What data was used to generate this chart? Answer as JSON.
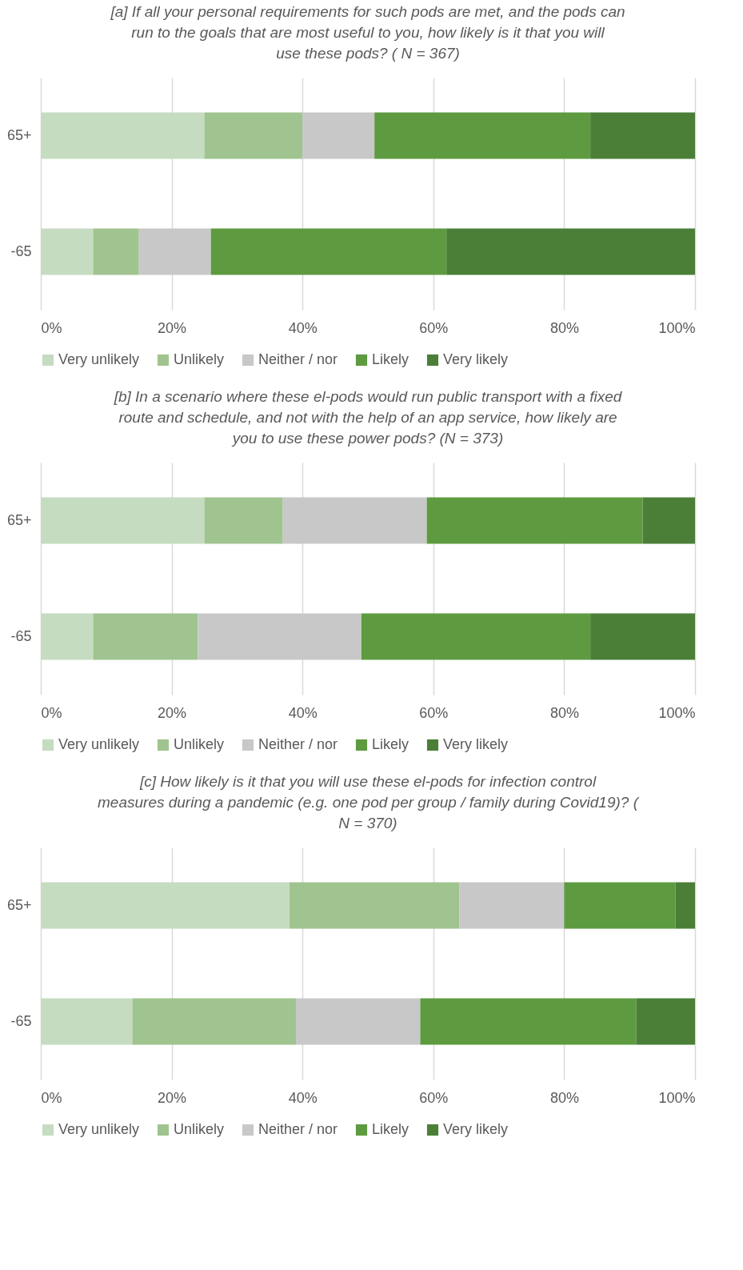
{
  "chart_data": [
    {
      "type": "bar",
      "orientation": "horizontal",
      "stacked": true,
      "title": "[a] If all your personal requirements for such pods are met, and the pods can run to the goals that are most useful to you, how likely is it that you will use these pods? ( N = 367)",
      "categories": [
        "65+",
        "-65"
      ],
      "series": [
        {
          "name": "Very unlikely",
          "color": "#c5dcc0",
          "values": [
            25,
            8
          ]
        },
        {
          "name": "Unlikely",
          "color": "#a0c48f",
          "values": [
            15,
            7
          ]
        },
        {
          "name": "Neither / nor",
          "color": "#c8c8c8",
          "values": [
            11,
            11
          ]
        },
        {
          "name": "Likely",
          "color": "#5e9b40",
          "values": [
            33,
            36
          ]
        },
        {
          "name": "Very likely",
          "color": "#4b7f38",
          "values": [
            16,
            38
          ]
        }
      ],
      "xlim": [
        0,
        100
      ],
      "xticks": [
        {
          "value": 0,
          "label": "0%"
        },
        {
          "value": 20,
          "label": "20%"
        },
        {
          "value": 40,
          "label": "40%"
        },
        {
          "value": 60,
          "label": "60%"
        },
        {
          "value": 80,
          "label": "80%"
        },
        {
          "value": 100,
          "label": "100%"
        }
      ],
      "grid": "x",
      "legend": "bottom"
    },
    {
      "type": "bar",
      "orientation": "horizontal",
      "stacked": true,
      "title": "[b] In a scenario where these el-pods would run public transport with a fixed route and schedule, and not with the help of an app service, how likely are you to use these power pods? (N = 373)",
      "categories": [
        "65+",
        "-65"
      ],
      "series": [
        {
          "name": "Very unlikely",
          "color": "#c5dcc0",
          "values": [
            25,
            8
          ]
        },
        {
          "name": "Unlikely",
          "color": "#a0c48f",
          "values": [
            12,
            16
          ]
        },
        {
          "name": "Neither / nor",
          "color": "#c8c8c8",
          "values": [
            22,
            25
          ]
        },
        {
          "name": "Likely",
          "color": "#5e9b40",
          "values": [
            33,
            35
          ]
        },
        {
          "name": "Very likely",
          "color": "#4b7f38",
          "values": [
            8,
            16
          ]
        }
      ],
      "xlim": [
        0,
        100
      ],
      "xticks": [
        {
          "value": 0,
          "label": "0%"
        },
        {
          "value": 20,
          "label": "20%"
        },
        {
          "value": 40,
          "label": "40%"
        },
        {
          "value": 60,
          "label": "60%"
        },
        {
          "value": 80,
          "label": "80%"
        },
        {
          "value": 100,
          "label": "100%"
        }
      ],
      "grid": "x",
      "legend": "bottom"
    },
    {
      "type": "bar",
      "orientation": "horizontal",
      "stacked": true,
      "title": "[c] How likely is it that you will use these el-pods for infection control measures during a pandemic (e.g. one pod per group / family during Covid19)? ( N = 370)",
      "categories": [
        "65+",
        "-65"
      ],
      "series": [
        {
          "name": "Very unlikely",
          "color": "#c5dcc0",
          "values": [
            38,
            14
          ]
        },
        {
          "name": "Unlikely",
          "color": "#a0c48f",
          "values": [
            26,
            25
          ]
        },
        {
          "name": "Neither / nor",
          "color": "#c8c8c8",
          "values": [
            16,
            19
          ]
        },
        {
          "name": "Likely",
          "color": "#5e9b40",
          "values": [
            17,
            33
          ]
        },
        {
          "name": "Very likely",
          "color": "#4b7f38",
          "values": [
            3,
            9
          ]
        }
      ],
      "xlim": [
        0,
        100
      ],
      "xticks": [
        {
          "value": 0,
          "label": "0%"
        },
        {
          "value": 20,
          "label": "20%"
        },
        {
          "value": 40,
          "label": "40%"
        },
        {
          "value": 60,
          "label": "60%"
        },
        {
          "value": 80,
          "label": "80%"
        },
        {
          "value": 100,
          "label": "100%"
        }
      ],
      "grid": "x",
      "legend": "bottom"
    }
  ]
}
